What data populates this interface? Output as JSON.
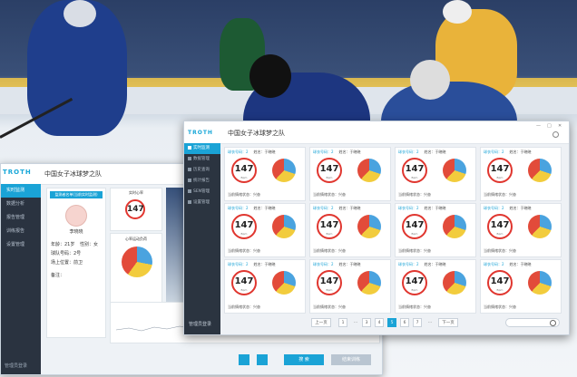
{
  "back_window": {
    "logo": "TROTH",
    "title": "中国女子冰球梦之队",
    "nav": [
      "实时监测",
      "数据分析",
      "报告管理",
      "训练报告",
      "设置管理"
    ],
    "footer": "管理员登录",
    "profile_tag": "监测者名单(当前实时监测)",
    "player_name": "李晓晓",
    "age": "年龄：21岁",
    "gender": "性别：女",
    "number": "球队号码：2号",
    "position": "场上位置：前卫",
    "remark": "备注：",
    "hr_label": "实时心率",
    "hr_value": "147",
    "zone_label": "心率运动负荷",
    "btn_primary": "搜 索",
    "btn_secondary": "结束训练"
  },
  "front_window": {
    "logo": "TROTH",
    "title": "中国女子冰球梦之队",
    "controls": [
      "—",
      "□",
      "✕"
    ],
    "nav": [
      "实时监测",
      "数据管理",
      "历史查询",
      "统计报告",
      "SEN管理",
      "设置管理"
    ],
    "active_nav": 0,
    "footer": "管理员登录",
    "cards": [
      {
        "tag": "球衣号码：2",
        "name": "姓名：于晓晓",
        "hr": "147",
        "unit": "Bpm",
        "status": "当前情绪状态：兴奋"
      },
      {
        "tag": "球衣号码：2",
        "name": "姓名：于晓晓",
        "hr": "147",
        "unit": "Bpm",
        "status": "当前情绪状态：兴奋"
      },
      {
        "tag": "球衣号码：2",
        "name": "姓名：于晓晓",
        "hr": "147",
        "unit": "Bpm",
        "status": "当前情绪状态：兴奋"
      },
      {
        "tag": "球衣号码：2",
        "name": "姓名：于晓晓",
        "hr": "147",
        "unit": "Bpm",
        "status": "当前情绪状态：兴奋"
      },
      {
        "tag": "球衣号码：2",
        "name": "姓名：于晓晓",
        "hr": "147",
        "unit": "Bpm",
        "status": "当前情绪状态：兴奋"
      },
      {
        "tag": "球衣号码：2",
        "name": "姓名：于晓晓",
        "hr": "147",
        "unit": "Bpm",
        "status": "当前情绪状态：兴奋"
      },
      {
        "tag": "球衣号码：2",
        "name": "姓名：于晓晓",
        "hr": "147",
        "unit": "Bpm",
        "status": "当前情绪状态：兴奋"
      },
      {
        "tag": "球衣号码：2",
        "name": "姓名：于晓晓",
        "hr": "147",
        "unit": "Bpm",
        "status": "当前情绪状态：兴奋"
      },
      {
        "tag": "球衣号码：2",
        "name": "姓名：于晓晓",
        "hr": "147",
        "unit": "Bpm",
        "status": "当前情绪状态：兴奋"
      },
      {
        "tag": "球衣号码：2",
        "name": "姓名：于晓晓",
        "hr": "147",
        "unit": "Bpm",
        "status": "当前情绪状态：兴奋"
      },
      {
        "tag": "球衣号码：2",
        "name": "姓名：于晓晓",
        "hr": "147",
        "unit": "Bpm",
        "status": "当前情绪状态：兴奋"
      },
      {
        "tag": "球衣号码：2",
        "name": "姓名：于晓晓",
        "hr": "147",
        "unit": "Bpm",
        "status": "当前情绪状态：兴奋"
      }
    ],
    "pager": {
      "prev": "上一页",
      "pages": [
        "1",
        "2",
        "3",
        "4",
        "5",
        "6",
        "7"
      ],
      "active": "5",
      "ellipsis": "…",
      "next": "下一页"
    },
    "search_placeholder": ""
  },
  "colors": {
    "accent": "#1aa3d6",
    "hr_ring": "#e0362f",
    "sidebar": "#2b3440",
    "pie_blue": "#4aa3df",
    "pie_yellow": "#f2cc3d",
    "pie_red": "#e24b3a"
  }
}
